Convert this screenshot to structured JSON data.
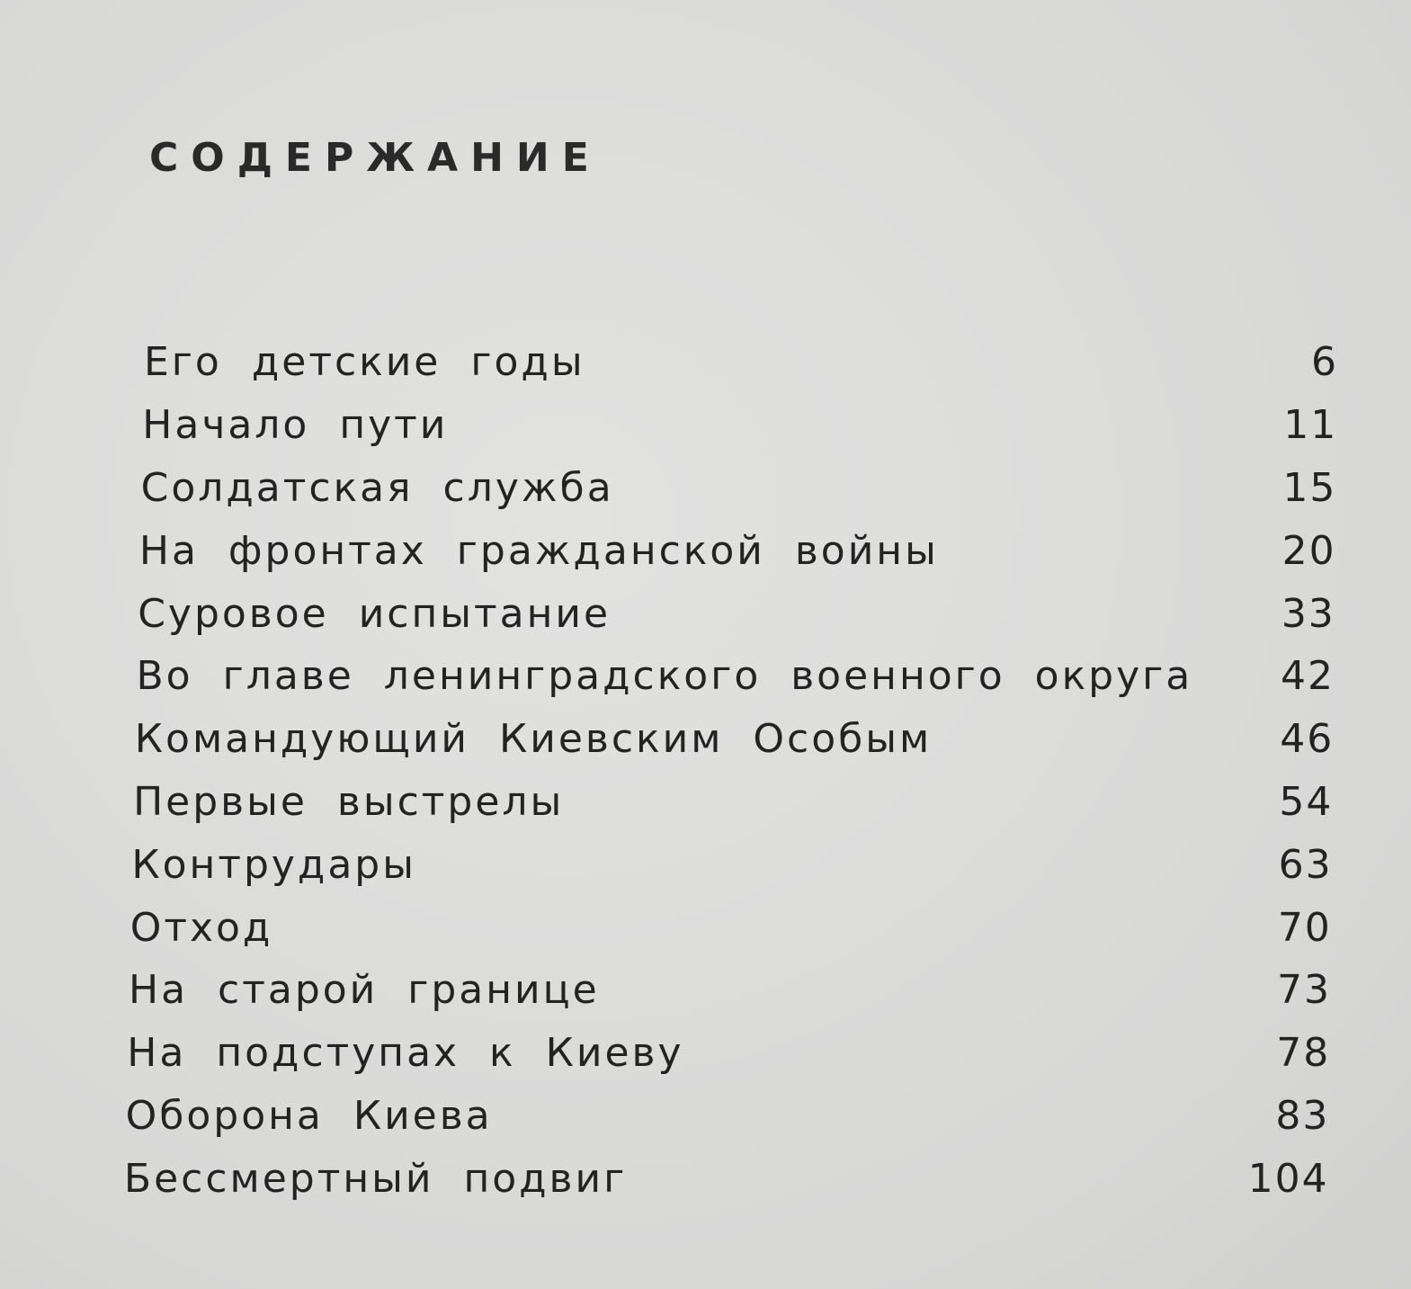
{
  "title": "СОДЕРЖАНИЕ",
  "entries": [
    {
      "label": "Его детские годы",
      "page": "6"
    },
    {
      "label": "Начало пути",
      "page": "11"
    },
    {
      "label": "Солдатская служба",
      "page": "15"
    },
    {
      "label": "На фронтах гражданской войны",
      "page": "20"
    },
    {
      "label": "Суровое испытание",
      "page": "33"
    },
    {
      "label": "Во главе ленинградского военного округа",
      "page": "42"
    },
    {
      "label": "Командующий Киевским Особым",
      "page": "46"
    },
    {
      "label": "Первые выстрелы",
      "page": "54"
    },
    {
      "label": "Контрудары",
      "page": "63"
    },
    {
      "label": "Отход",
      "page": "70"
    },
    {
      "label": "На старой границе",
      "page": "73"
    },
    {
      "label": "На подступах к Киеву",
      "page": "78"
    },
    {
      "label": "Оборона Киева",
      "page": "83"
    },
    {
      "label": "Бессмертный подвиг",
      "page": "104"
    }
  ]
}
